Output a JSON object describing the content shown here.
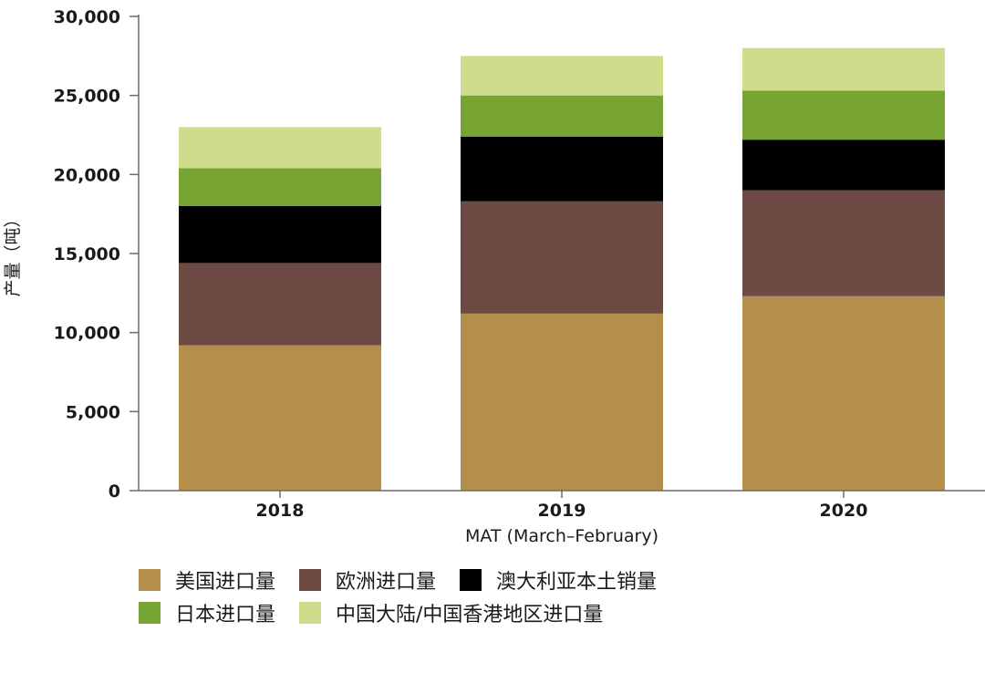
{
  "chart_data": {
    "type": "bar",
    "stacked": true,
    "categories": [
      "2018",
      "2019",
      "2020"
    ],
    "series": [
      {
        "name": "美国进口量",
        "color": "#b48f4c",
        "values": [
          9200,
          11200,
          12300
        ]
      },
      {
        "name": "欧洲进口量",
        "color": "#6e4a44",
        "values": [
          5200,
          7100,
          6700
        ]
      },
      {
        "name": "澳大利亚本土销量",
        "color": "#000000",
        "values": [
          3600,
          4100,
          3200
        ]
      },
      {
        "name": "日本进口量",
        "color": "#78a434",
        "values": [
          2400,
          2600,
          3100
        ]
      },
      {
        "name": "中国大陆/中国香港地区进口量",
        "color": "#cfdc8c",
        "values": [
          2600,
          2500,
          2700
        ]
      }
    ],
    "ylabel": "产量（吨）",
    "xlabel": "MAT (March–February)",
    "ylim": [
      0,
      30000
    ],
    "yticks": [
      0,
      5000,
      10000,
      15000,
      20000,
      25000,
      30000
    ],
    "ytick_labels": [
      "0",
      "5,000",
      "10,000",
      "15,000",
      "20,000",
      "25,000",
      "30,000"
    ],
    "grid": false,
    "legend_position": "bottom"
  }
}
